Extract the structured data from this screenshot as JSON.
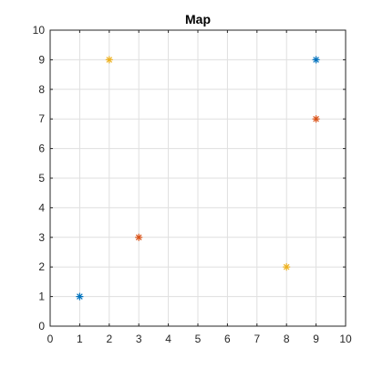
{
  "chart_data": {
    "type": "scatter",
    "title": "Map",
    "xlabel": "",
    "ylabel": "",
    "xlim": [
      0,
      10
    ],
    "ylim": [
      0,
      10
    ],
    "xticks": [
      0,
      1,
      2,
      3,
      4,
      5,
      6,
      7,
      8,
      9,
      10
    ],
    "yticks": [
      0,
      1,
      2,
      3,
      4,
      5,
      6,
      7,
      8,
      9,
      10
    ],
    "grid": true,
    "marker": "asterisk",
    "series": [
      {
        "color": "#0072BD",
        "points": [
          {
            "x": 1,
            "y": 1
          },
          {
            "x": 9,
            "y": 9
          }
        ]
      },
      {
        "color": "#D95319",
        "points": [
          {
            "x": 3,
            "y": 3
          },
          {
            "x": 9,
            "y": 7
          }
        ]
      },
      {
        "color": "#EDB120",
        "points": [
          {
            "x": 2,
            "y": 9
          },
          {
            "x": 8,
            "y": 2
          }
        ]
      }
    ]
  }
}
